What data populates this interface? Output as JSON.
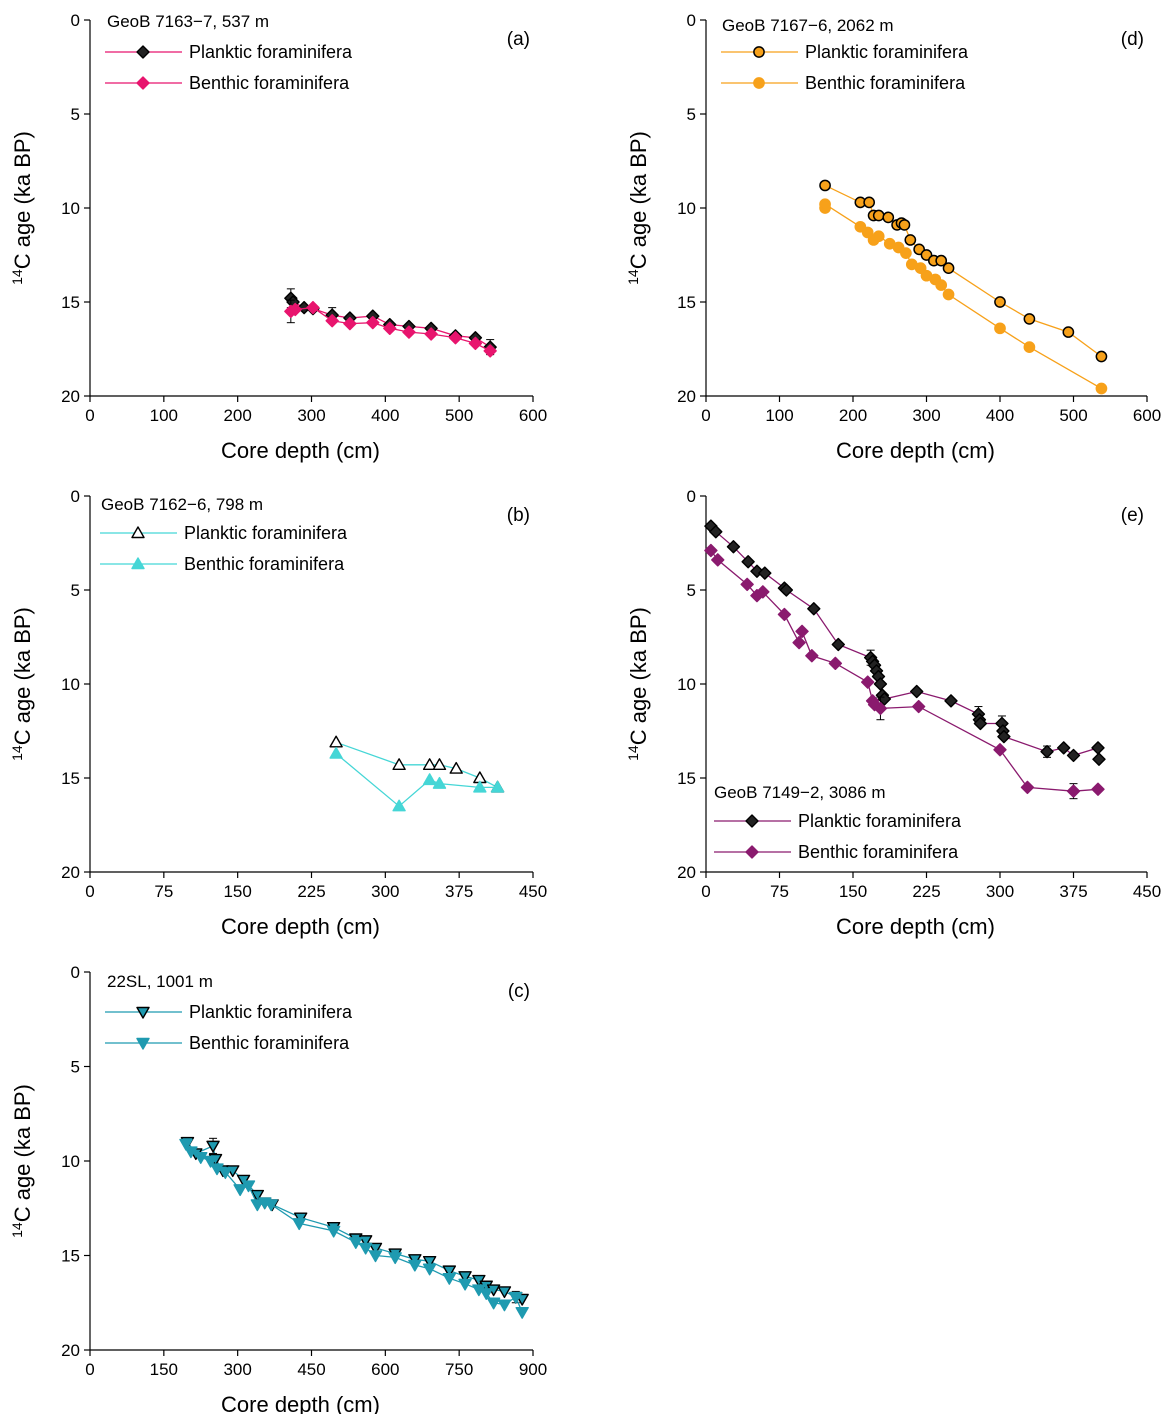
{
  "chart_data": [
    {
      "id": "a",
      "type": "scatter",
      "panel_label": "(a)",
      "site": "GeoB 7163−7, 537 m",
      "xlabel": "Core depth (cm)",
      "ylabel_sup": "14",
      "ylabel_main": "C age (ka BP)",
      "xlim": [
        0,
        600
      ],
      "ylim": [
        0,
        20
      ],
      "y_inverted": true,
      "xticks": [
        0,
        100,
        200,
        300,
        400,
        500,
        600
      ],
      "yticks": [
        0,
        5,
        10,
        15,
        20
      ],
      "legend_position": "top-left",
      "marker": "diamond",
      "series": [
        {
          "name": "Planktic foraminifera",
          "color": "#e8156e",
          "fill": "#222222",
          "points": [
            [
              272,
              14.8
            ],
            [
              275,
              15.0
            ],
            [
              290,
              15.3
            ],
            [
              302,
              15.35
            ],
            [
              328,
              15.7
            ],
            [
              352,
              15.85
            ],
            [
              383,
              15.75
            ],
            [
              406,
              16.2
            ],
            [
              432,
              16.3
            ],
            [
              462,
              16.4
            ],
            [
              495,
              16.8
            ],
            [
              522,
              16.9
            ],
            [
              542,
              17.4
            ]
          ],
          "errors": [
            [
              272,
              0.5
            ],
            [
              328,
              0.4
            ],
            [
              542,
              0.4
            ]
          ]
        },
        {
          "name": "Benthic foraminifera",
          "color": "#e8156e",
          "fill": "#e8156e",
          "points": [
            [
              272,
              15.5
            ],
            [
              278,
              15.4
            ],
            [
              302,
              15.3
            ],
            [
              328,
              16.0
            ],
            [
              352,
              16.15
            ],
            [
              383,
              16.1
            ],
            [
              406,
              16.4
            ],
            [
              432,
              16.6
            ],
            [
              462,
              16.7
            ],
            [
              495,
              16.9
            ],
            [
              522,
              17.2
            ],
            [
              542,
              17.6
            ]
          ],
          "errors": [
            [
              272,
              0.6
            ]
          ]
        }
      ]
    },
    {
      "id": "b",
      "type": "scatter",
      "panel_label": "(b)",
      "site": "GeoB 7162−6, 798 m",
      "xlabel": "Core depth (cm)",
      "ylabel_sup": "14",
      "ylabel_main": "C age (ka BP)",
      "xlim": [
        0,
        450
      ],
      "ylim": [
        0,
        20
      ],
      "y_inverted": true,
      "xticks": [
        0,
        75,
        150,
        225,
        300,
        375,
        450
      ],
      "yticks": [
        0,
        5,
        10,
        15,
        20
      ],
      "legend_position": "top-left",
      "marker": "triangle-up",
      "series": [
        {
          "name": "Planktic foraminifera",
          "color": "#45d6d6",
          "fill": "#ffffff",
          "points": [
            [
              250,
              13.1
            ],
            [
              314,
              14.3
            ],
            [
              345,
              14.3
            ],
            [
              355,
              14.3
            ],
            [
              372,
              14.5
            ],
            [
              396,
              15.0
            ],
            [
              414,
              15.5
            ]
          ],
          "errors": []
        },
        {
          "name": "Benthic foraminifera",
          "color": "#45d6d6",
          "fill": "#45d6d6",
          "points": [
            [
              250,
              13.7
            ],
            [
              314,
              16.5
            ],
            [
              345,
              15.1
            ],
            [
              355,
              15.3
            ],
            [
              396,
              15.5
            ],
            [
              414,
              15.5
            ]
          ],
          "errors": []
        }
      ]
    },
    {
      "id": "c",
      "type": "scatter",
      "panel_label": "(c)",
      "site": "22SL, 1001 m",
      "xlabel": "Core depth (cm)",
      "ylabel_sup": "14",
      "ylabel_main": "C age (ka BP)",
      "xlim": [
        0,
        900
      ],
      "ylim": [
        0,
        20
      ],
      "y_inverted": true,
      "xticks": [
        0,
        150,
        300,
        450,
        600,
        750,
        900
      ],
      "yticks": [
        0,
        5,
        10,
        15,
        20
      ],
      "legend_position": "top-left",
      "marker": "triangle-down",
      "series": [
        {
          "name": "Planktic foraminifera",
          "color": "#1f9ab0",
          "fill": "#1f9ab0",
          "stroke_dark": true,
          "points": [
            [
              198,
              9.0
            ],
            [
              215,
              9.6
            ],
            [
              250,
              9.2
            ],
            [
              255,
              9.9
            ],
            [
              270,
              10.5
            ],
            [
              290,
              10.5
            ],
            [
              312,
              11.0
            ],
            [
              340,
              11.8
            ],
            [
              355,
              12.2
            ],
            [
              370,
              12.3
            ],
            [
              428,
              13.0
            ],
            [
              495,
              13.5
            ],
            [
              540,
              14.1
            ],
            [
              560,
              14.2
            ],
            [
              580,
              14.6
            ],
            [
              620,
              14.9
            ],
            [
              660,
              15.2
            ],
            [
              690,
              15.3
            ],
            [
              730,
              15.8
            ],
            [
              762,
              16.1
            ],
            [
              790,
              16.3
            ],
            [
              805,
              16.6
            ],
            [
              820,
              16.8
            ],
            [
              842,
              16.9
            ],
            [
              865,
              17.2
            ],
            [
              878,
              17.3
            ]
          ],
          "errors": [
            [
              250,
              0.4
            ],
            [
              865,
              0.3
            ]
          ]
        },
        {
          "name": "Benthic foraminifera",
          "color": "#1f9ab0",
          "fill": "#1f9ab0",
          "points": [
            [
              195,
              9.1
            ],
            [
              205,
              9.5
            ],
            [
              225,
              9.8
            ],
            [
              245,
              10.0
            ],
            [
              258,
              10.4
            ],
            [
              275,
              10.6
            ],
            [
              305,
              11.5
            ],
            [
              322,
              11.3
            ],
            [
              340,
              12.3
            ],
            [
              355,
              12.2
            ],
            [
              368,
              12.3
            ],
            [
              425,
              13.3
            ],
            [
              495,
              13.7
            ],
            [
              540,
              14.3
            ],
            [
              560,
              14.6
            ],
            [
              580,
              15.0
            ],
            [
              620,
              15.1
            ],
            [
              660,
              15.5
            ],
            [
              690,
              15.7
            ],
            [
              730,
              16.2
            ],
            [
              762,
              16.5
            ],
            [
              790,
              16.8
            ],
            [
              805,
              17.0
            ],
            [
              820,
              17.5
            ],
            [
              842,
              17.6
            ],
            [
              865,
              17.2
            ],
            [
              878,
              18.0
            ]
          ],
          "errors": []
        }
      ]
    },
    {
      "id": "d",
      "type": "scatter",
      "panel_label": "(d)",
      "site": "GeoB 7167−6, 2062 m",
      "xlabel": "Core depth (cm)",
      "ylabel_sup": "14",
      "ylabel_main": "C age (ka BP)",
      "xlim": [
        0,
        600
      ],
      "ylim": [
        0,
        20
      ],
      "y_inverted": true,
      "xticks": [
        0,
        100,
        200,
        300,
        400,
        500,
        600
      ],
      "yticks": [
        0,
        5,
        10,
        15,
        20
      ],
      "legend_position": "top-left",
      "marker": "circle",
      "series": [
        {
          "name": "Planktic foraminifera",
          "color": "#f7a11a",
          "fill": "#f7a11a",
          "stroke_dark": true,
          "points": [
            [
              162,
              8.8
            ],
            [
              210,
              9.7
            ],
            [
              222,
              9.7
            ],
            [
              228,
              10.4
            ],
            [
              235,
              10.4
            ],
            [
              248,
              10.5
            ],
            [
              260,
              10.9
            ],
            [
              266,
              10.8
            ],
            [
              270,
              10.9
            ],
            [
              278,
              11.7
            ],
            [
              290,
              12.2
            ],
            [
              300,
              12.5
            ],
            [
              310,
              12.8
            ],
            [
              320,
              12.8
            ],
            [
              330,
              13.2
            ],
            [
              400,
              15.0
            ],
            [
              440,
              15.9
            ],
            [
              493,
              16.6
            ],
            [
              538,
              17.9
            ]
          ],
          "errors": []
        },
        {
          "name": "Benthic foraminifera",
          "color": "#f7a11a",
          "fill": "#f7a11a",
          "points": [
            [
              162,
              10.0
            ],
            [
              162,
              9.8
            ],
            [
              210,
              11.0
            ],
            [
              220,
              11.3
            ],
            [
              228,
              11.7
            ],
            [
              235,
              11.5
            ],
            [
              250,
              11.9
            ],
            [
              262,
              12.1
            ],
            [
              272,
              12.4
            ],
            [
              280,
              13.0
            ],
            [
              292,
              13.2
            ],
            [
              300,
              13.6
            ],
            [
              312,
              13.8
            ],
            [
              320,
              14.1
            ],
            [
              330,
              14.6
            ],
            [
              400,
              16.4
            ],
            [
              440,
              17.4
            ],
            [
              538,
              19.6
            ]
          ],
          "errors": []
        }
      ]
    },
    {
      "id": "e",
      "type": "scatter",
      "panel_label": "(e)",
      "site": "GeoB 7149−2, 3086 m",
      "xlabel": "Core depth (cm)",
      "ylabel_sup": "14",
      "ylabel_main": "C age (ka BP)",
      "xlim": [
        0,
        450
      ],
      "ylim": [
        0,
        20
      ],
      "y_inverted": true,
      "xticks": [
        0,
        75,
        150,
        225,
        300,
        375,
        450
      ],
      "yticks": [
        0,
        5,
        10,
        15,
        20
      ],
      "legend_position": "bottom-left",
      "marker": "diamond",
      "series": [
        {
          "name": "Planktic foraminifera",
          "color": "#8a1a6e",
          "fill": "#222222",
          "points": [
            [
              5,
              1.6
            ],
            [
              10,
              1.9
            ],
            [
              28,
              2.7
            ],
            [
              43,
              3.5
            ],
            [
              52,
              4.0
            ],
            [
              60,
              4.1
            ],
            [
              80,
              4.9
            ],
            [
              82,
              5.0
            ],
            [
              110,
              6.0
            ],
            [
              135,
              7.9
            ],
            [
              168,
              8.6
            ],
            [
              170,
              8.8
            ],
            [
              172,
              9.0
            ],
            [
              174,
              9.3
            ],
            [
              176,
              9.6
            ],
            [
              178,
              10.0
            ],
            [
              180,
              10.6
            ],
            [
              182,
              10.8
            ],
            [
              215,
              10.4
            ],
            [
              250,
              10.9
            ],
            [
              278,
              11.6
            ],
            [
              279,
              11.9
            ],
            [
              280,
              12.1
            ],
            [
              302,
              12.1
            ],
            [
              303,
              12.5
            ],
            [
              304,
              12.8
            ],
            [
              348,
              13.6
            ],
            [
              365,
              13.4
            ],
            [
              375,
              13.8
            ],
            [
              400,
              13.4
            ],
            [
              401,
              14.0
            ]
          ],
          "errors": [
            [
              168,
              0.4
            ],
            [
              278,
              0.4
            ],
            [
              302,
              0.4
            ],
            [
              348,
              0.3
            ]
          ]
        },
        {
          "name": "Benthic foraminifera",
          "color": "#8a1a6e",
          "fill": "#8a1a6e",
          "points": [
            [
              5,
              2.9
            ],
            [
              12,
              3.4
            ],
            [
              42,
              4.7
            ],
            [
              52,
              5.3
            ],
            [
              58,
              5.1
            ],
            [
              80,
              6.3
            ],
            [
              95,
              7.8
            ],
            [
              98,
              7.2
            ],
            [
              108,
              8.5
            ],
            [
              132,
              8.9
            ],
            [
              165,
              9.9
            ],
            [
              170,
              10.9
            ],
            [
              172,
              11.1
            ],
            [
              178,
              11.3
            ],
            [
              217,
              11.2
            ],
            [
              300,
              13.5
            ],
            [
              328,
              15.5
            ],
            [
              375,
              15.7
            ],
            [
              400,
              15.6
            ]
          ],
          "errors": [
            [
              178,
              0.6
            ],
            [
              375,
              0.4
            ]
          ]
        }
      ]
    }
  ]
}
